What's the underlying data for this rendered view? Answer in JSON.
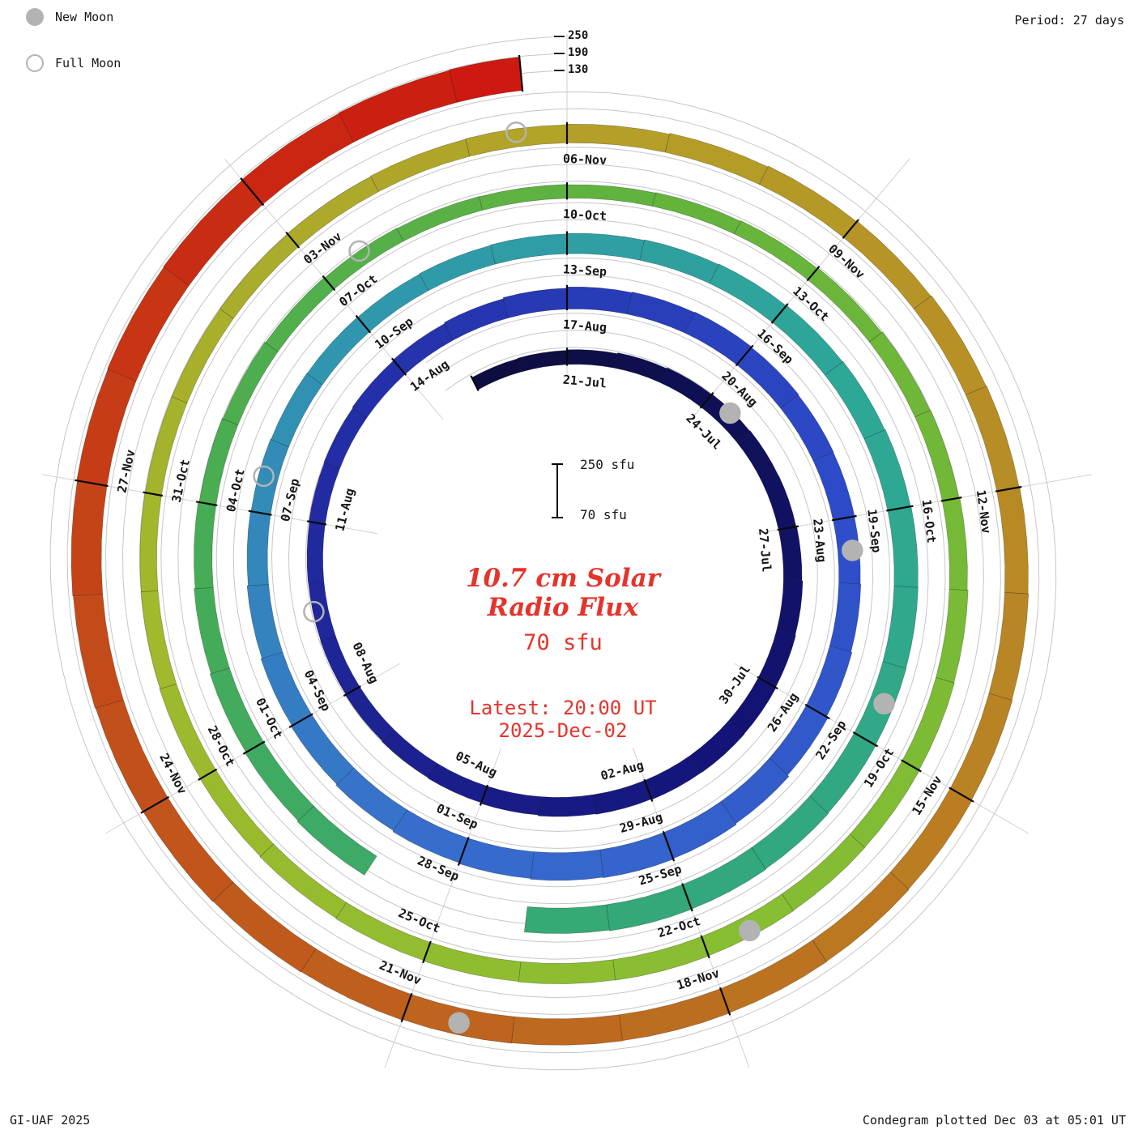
{
  "legend": {
    "new_moon_label": "New Moon",
    "full_moon_label": "Full Moon"
  },
  "header": {
    "period_label": "Period: 27 days"
  },
  "footer": {
    "credit": "GI-UAF 2025",
    "plotted": "Condegram plotted Dec 03 at 05:01 UT"
  },
  "radial_scale": {
    "t250": "250",
    "t190": "190",
    "t130": "130"
  },
  "center": {
    "title_line1": "10.7 cm Solar",
    "title_line2": "Radio Flux",
    "value_label": "70 sfu",
    "latest_line1": "Latest: 20:00 UT",
    "latest_line2": "2025-Dec-02",
    "scalebar_top": "250 sfu",
    "scalebar_bottom": "70 sfu"
  },
  "chart_data": {
    "type": "spiral",
    "subtype": "condegram",
    "title": "10.7 cm Solar Radio Flux",
    "units": "sfu",
    "period_days": 27,
    "baseline_sfu": 70,
    "gridline_sfu": [
      130,
      190,
      250
    ],
    "start_date": "2025-07-19",
    "epoch_top": "2025-07-21",
    "end_date": "2025-12-02",
    "latest_time": "20:00 UT",
    "tick_label_start": "2025-07-21",
    "tick_label_step_days": 3,
    "tick_labels": [
      "21-Jul",
      "24-Jul",
      "27-Jul",
      "30-Jul",
      "02-Aug",
      "05-Aug",
      "08-Aug",
      "11-Aug",
      "14-Aug",
      "17-Aug",
      "20-Aug",
      "23-Aug",
      "26-Aug",
      "29-Aug",
      "01-Sep",
      "04-Sep",
      "07-Sep",
      "10-Sep",
      "13-Sep",
      "16-Sep",
      "19-Sep",
      "22-Sep",
      "25-Sep",
      "28-Sep",
      "01-Oct",
      "04-Oct",
      "07-Oct",
      "10-Oct",
      "13-Oct",
      "16-Oct",
      "19-Oct",
      "22-Oct",
      "25-Oct",
      "28-Oct",
      "31-Oct",
      "03-Nov",
      "06-Nov",
      "09-Nov",
      "12-Nov",
      "15-Nov",
      "18-Nov",
      "21-Nov",
      "24-Nov",
      "27-Nov"
    ],
    "daily_flux_sfu": [
      118,
      120,
      122,
      125,
      128,
      130,
      132,
      133,
      135,
      138,
      140,
      142,
      143,
      142,
      140,
      138,
      135,
      132,
      130,
      128,
      126,
      125,
      126,
      128,
      130,
      133,
      136,
      140,
      144,
      148,
      150,
      152,
      150,
      148,
      147,
      146,
      148,
      152,
      158,
      164,
      168,
      170,
      168,
      165,
      162,
      158,
      154,
      150,
      146,
      142,
      140,
      138,
      137,
      136,
      138,
      140,
      142,
      144,
      146,
      148,
      150,
      152,
      154,
      155,
      156,
      158,
      160,
      162,
      163,
      160,
      null,
      null,
      150,
      146,
      142,
      138,
      134,
      130,
      127,
      124,
      122,
      120,
      119,
      118,
      120,
      122,
      125,
      128,
      130,
      133,
      136,
      138,
      140,
      141,
      142,
      143,
      142,
      140,
      138,
      136,
      134,
      132,
      130,
      129,
      128,
      128,
      129,
      130,
      132,
      134,
      136,
      139,
      142,
      145,
      148,
      150,
      152,
      154,
      156,
      158,
      160,
      161,
      162,
      163,
      164,
      166,
      168,
      170,
      172,
      174,
      176,
      178,
      180,
      182,
      184,
      186,
      188
    ],
    "new_moon_dates": [
      "2025-07-24",
      "2025-08-23",
      "2025-09-21",
      "2025-10-21",
      "2025-11-20"
    ],
    "full_moon_dates": [
      "2025-08-09",
      "2025-09-07",
      "2025-10-07",
      "2025-11-05"
    ],
    "color_stops": [
      [
        0,
        "#0d0d40"
      ],
      [
        12,
        "#141478"
      ],
      [
        24,
        "#232da5"
      ],
      [
        34,
        "#2d4bc8"
      ],
      [
        44,
        "#376ecd"
      ],
      [
        52,
        "#3096af"
      ],
      [
        60,
        "#2da896"
      ],
      [
        68,
        "#34a878"
      ],
      [
        76,
        "#46ac55"
      ],
      [
        84,
        "#64b43c"
      ],
      [
        94,
        "#87be32"
      ],
      [
        102,
        "#a0b92d"
      ],
      [
        110,
        "#b4a028"
      ],
      [
        118,
        "#b98223"
      ],
      [
        124,
        "#be641e"
      ],
      [
        129,
        "#c34b19"
      ],
      [
        133,
        "#c82d14"
      ],
      [
        136,
        "#cd190f"
      ]
    ],
    "moon_marker_color": "#b3b3b3"
  }
}
